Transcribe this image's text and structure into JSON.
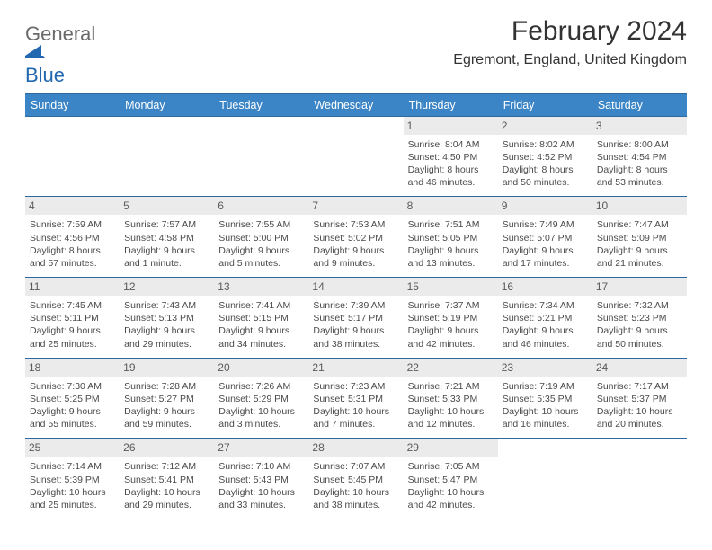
{
  "logo": {
    "general": "General",
    "blue": "Blue",
    "shape_color": "#2268b0"
  },
  "title": "February 2024",
  "location": "Egremont, England, United Kingdom",
  "colors": {
    "header_bg": "#3b85c6",
    "header_text": "#ffffff",
    "row_border": "#2e6aa0",
    "daynum_bg": "#ebebeb",
    "daynum_text": "#5a5a5a",
    "body_text": "#4a4a4a",
    "background": "#ffffff"
  },
  "typography": {
    "title_fontsize": 30,
    "location_fontsize": 16,
    "header_fontsize": 12.5,
    "daynum_fontsize": 12,
    "body_fontsize": 10.5
  },
  "daynames": [
    "Sunday",
    "Monday",
    "Tuesday",
    "Wednesday",
    "Thursday",
    "Friday",
    "Saturday"
  ],
  "weeks": [
    [
      {
        "n": "",
        "sr": "",
        "ss": "",
        "dl": ""
      },
      {
        "n": "",
        "sr": "",
        "ss": "",
        "dl": ""
      },
      {
        "n": "",
        "sr": "",
        "ss": "",
        "dl": ""
      },
      {
        "n": "",
        "sr": "",
        "ss": "",
        "dl": ""
      },
      {
        "n": "1",
        "sr": "Sunrise: 8:04 AM",
        "ss": "Sunset: 4:50 PM",
        "dl": "Daylight: 8 hours and 46 minutes."
      },
      {
        "n": "2",
        "sr": "Sunrise: 8:02 AM",
        "ss": "Sunset: 4:52 PM",
        "dl": "Daylight: 8 hours and 50 minutes."
      },
      {
        "n": "3",
        "sr": "Sunrise: 8:00 AM",
        "ss": "Sunset: 4:54 PM",
        "dl": "Daylight: 8 hours and 53 minutes."
      }
    ],
    [
      {
        "n": "4",
        "sr": "Sunrise: 7:59 AM",
        "ss": "Sunset: 4:56 PM",
        "dl": "Daylight: 8 hours and 57 minutes."
      },
      {
        "n": "5",
        "sr": "Sunrise: 7:57 AM",
        "ss": "Sunset: 4:58 PM",
        "dl": "Daylight: 9 hours and 1 minute."
      },
      {
        "n": "6",
        "sr": "Sunrise: 7:55 AM",
        "ss": "Sunset: 5:00 PM",
        "dl": "Daylight: 9 hours and 5 minutes."
      },
      {
        "n": "7",
        "sr": "Sunrise: 7:53 AM",
        "ss": "Sunset: 5:02 PM",
        "dl": "Daylight: 9 hours and 9 minutes."
      },
      {
        "n": "8",
        "sr": "Sunrise: 7:51 AM",
        "ss": "Sunset: 5:05 PM",
        "dl": "Daylight: 9 hours and 13 minutes."
      },
      {
        "n": "9",
        "sr": "Sunrise: 7:49 AM",
        "ss": "Sunset: 5:07 PM",
        "dl": "Daylight: 9 hours and 17 minutes."
      },
      {
        "n": "10",
        "sr": "Sunrise: 7:47 AM",
        "ss": "Sunset: 5:09 PM",
        "dl": "Daylight: 9 hours and 21 minutes."
      }
    ],
    [
      {
        "n": "11",
        "sr": "Sunrise: 7:45 AM",
        "ss": "Sunset: 5:11 PM",
        "dl": "Daylight: 9 hours and 25 minutes."
      },
      {
        "n": "12",
        "sr": "Sunrise: 7:43 AM",
        "ss": "Sunset: 5:13 PM",
        "dl": "Daylight: 9 hours and 29 minutes."
      },
      {
        "n": "13",
        "sr": "Sunrise: 7:41 AM",
        "ss": "Sunset: 5:15 PM",
        "dl": "Daylight: 9 hours and 34 minutes."
      },
      {
        "n": "14",
        "sr": "Sunrise: 7:39 AM",
        "ss": "Sunset: 5:17 PM",
        "dl": "Daylight: 9 hours and 38 minutes."
      },
      {
        "n": "15",
        "sr": "Sunrise: 7:37 AM",
        "ss": "Sunset: 5:19 PM",
        "dl": "Daylight: 9 hours and 42 minutes."
      },
      {
        "n": "16",
        "sr": "Sunrise: 7:34 AM",
        "ss": "Sunset: 5:21 PM",
        "dl": "Daylight: 9 hours and 46 minutes."
      },
      {
        "n": "17",
        "sr": "Sunrise: 7:32 AM",
        "ss": "Sunset: 5:23 PM",
        "dl": "Daylight: 9 hours and 50 minutes."
      }
    ],
    [
      {
        "n": "18",
        "sr": "Sunrise: 7:30 AM",
        "ss": "Sunset: 5:25 PM",
        "dl": "Daylight: 9 hours and 55 minutes."
      },
      {
        "n": "19",
        "sr": "Sunrise: 7:28 AM",
        "ss": "Sunset: 5:27 PM",
        "dl": "Daylight: 9 hours and 59 minutes."
      },
      {
        "n": "20",
        "sr": "Sunrise: 7:26 AM",
        "ss": "Sunset: 5:29 PM",
        "dl": "Daylight: 10 hours and 3 minutes."
      },
      {
        "n": "21",
        "sr": "Sunrise: 7:23 AM",
        "ss": "Sunset: 5:31 PM",
        "dl": "Daylight: 10 hours and 7 minutes."
      },
      {
        "n": "22",
        "sr": "Sunrise: 7:21 AM",
        "ss": "Sunset: 5:33 PM",
        "dl": "Daylight: 10 hours and 12 minutes."
      },
      {
        "n": "23",
        "sr": "Sunrise: 7:19 AM",
        "ss": "Sunset: 5:35 PM",
        "dl": "Daylight: 10 hours and 16 minutes."
      },
      {
        "n": "24",
        "sr": "Sunrise: 7:17 AM",
        "ss": "Sunset: 5:37 PM",
        "dl": "Daylight: 10 hours and 20 minutes."
      }
    ],
    [
      {
        "n": "25",
        "sr": "Sunrise: 7:14 AM",
        "ss": "Sunset: 5:39 PM",
        "dl": "Daylight: 10 hours and 25 minutes."
      },
      {
        "n": "26",
        "sr": "Sunrise: 7:12 AM",
        "ss": "Sunset: 5:41 PM",
        "dl": "Daylight: 10 hours and 29 minutes."
      },
      {
        "n": "27",
        "sr": "Sunrise: 7:10 AM",
        "ss": "Sunset: 5:43 PM",
        "dl": "Daylight: 10 hours and 33 minutes."
      },
      {
        "n": "28",
        "sr": "Sunrise: 7:07 AM",
        "ss": "Sunset: 5:45 PM",
        "dl": "Daylight: 10 hours and 38 minutes."
      },
      {
        "n": "29",
        "sr": "Sunrise: 7:05 AM",
        "ss": "Sunset: 5:47 PM",
        "dl": "Daylight: 10 hours and 42 minutes."
      },
      {
        "n": "",
        "sr": "",
        "ss": "",
        "dl": ""
      },
      {
        "n": "",
        "sr": "",
        "ss": "",
        "dl": ""
      }
    ]
  ]
}
